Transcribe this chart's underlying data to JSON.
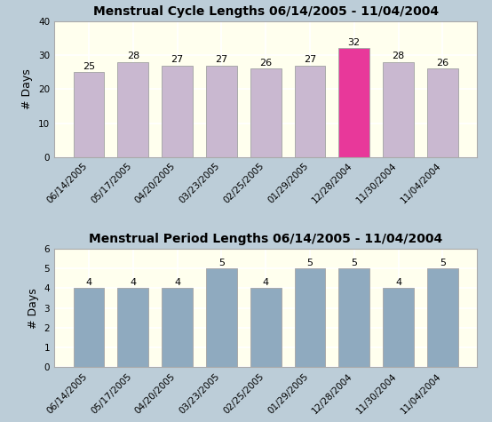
{
  "cycle_title": "Menstrual Cycle Lengths 06/14/2005 - 11/04/2004",
  "period_title": "Menstrual Period Lengths 06/14/2005 - 11/04/2004",
  "categories": [
    "06/14/2005",
    "05/17/2005",
    "04/20/2005",
    "03/23/2005",
    "02/25/2005",
    "01/29/2005",
    "12/28/2004",
    "11/30/2004",
    "11/04/2004"
  ],
  "cycle_values": [
    25,
    28,
    27,
    27,
    26,
    27,
    32,
    28,
    26
  ],
  "period_values": [
    4,
    4,
    4,
    5,
    4,
    5,
    5,
    4,
    5
  ],
  "cycle_bar_colors": [
    "#c9b8d0",
    "#c9b8d0",
    "#c9b8d0",
    "#c9b8d0",
    "#c9b8d0",
    "#c9b8d0",
    "#e8389a",
    "#c9b8d0",
    "#c9b8d0"
  ],
  "period_bar_colors": [
    "#8faabf",
    "#8faabf",
    "#8faabf",
    "#8faabf",
    "#8faabf",
    "#8faabf",
    "#8faabf",
    "#8faabf",
    "#8faabf"
  ],
  "cycle_ylim": [
    0,
    40
  ],
  "period_ylim": [
    0,
    6
  ],
  "cycle_yticks": [
    0,
    10,
    20,
    30,
    40
  ],
  "period_yticks": [
    0,
    1,
    2,
    3,
    4,
    5,
    6
  ],
  "ylabel": "# Days",
  "bg_color": "#ffffee",
  "outer_bg": "#bccdd8",
  "title_fontsize": 10,
  "label_fontsize": 8,
  "tick_fontsize": 7.5
}
